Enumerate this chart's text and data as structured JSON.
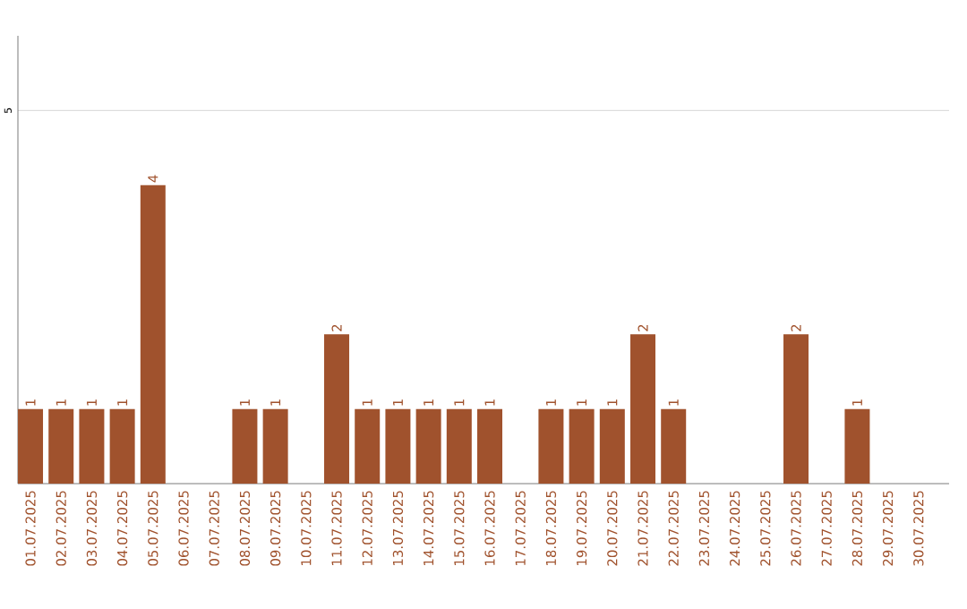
{
  "chart_data": {
    "type": "bar",
    "categories": [
      "01.07.2025",
      "02.07.2025",
      "03.07.2025",
      "04.07.2025",
      "05.07.2025",
      "06.07.2025",
      "07.07.2025",
      "08.07.2025",
      "09.07.2025",
      "10.07.2025",
      "11.07.2025",
      "12.07.2025",
      "13.07.2025",
      "14.07.2025",
      "15.07.2025",
      "16.07.2025",
      "17.07.2025",
      "18.07.2025",
      "19.07.2025",
      "20.07.2025",
      "21.07.2025",
      "22.07.2025",
      "23.07.2025",
      "24.07.2025",
      "25.07.2025",
      "26.07.2025",
      "27.07.2025",
      "28.07.2025",
      "29.07.2025",
      "30.07.2025"
    ],
    "values": [
      1,
      1,
      1,
      1,
      4,
      0,
      0,
      1,
      1,
      0,
      2,
      1,
      1,
      1,
      1,
      1,
      0,
      1,
      1,
      1,
      2,
      1,
      0,
      0,
      0,
      2,
      0,
      1,
      0,
      0
    ],
    "value_labels": [
      "1",
      "1",
      "1",
      "1",
      "4",
      null,
      null,
      "1",
      "1",
      null,
      "2",
      "1",
      "1",
      "1",
      "1",
      "1",
      null,
      "1",
      "1",
      "1",
      "2",
      "1",
      null,
      null,
      null,
      "2",
      null,
      "1",
      null,
      null
    ],
    "color": "#a0522d",
    "ylim": [
      0,
      6
    ],
    "yticks": [
      5
    ],
    "grid": "y"
  }
}
